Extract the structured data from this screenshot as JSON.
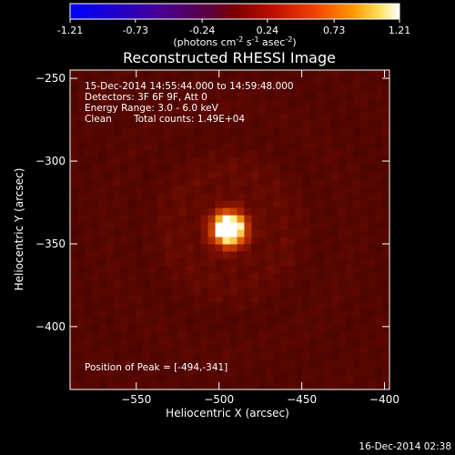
{
  "chart_data": {
    "type": "heatmap",
    "colorbar": {
      "tick_labels": [
        "-1.21",
        "-0.73",
        "-0.24",
        "0.24",
        "0.73",
        "1.21"
      ],
      "range": [
        -1.21,
        1.21
      ],
      "label_prefix": "(photons cm",
      "label_exp1": "-2",
      "label_mid": " s",
      "label_exp2": "-1",
      "label_mid2": " asec",
      "label_exp3": "-2",
      "label_suffix": ")"
    },
    "title": "Reconstructed RHESSI Image",
    "annotations": {
      "time_range": "15-Dec-2014 14:55:44.000 to 14:59:48.000",
      "detectors": "Detectors: 3F 6F 9F, Att 0",
      "energy": "Energy Range: 3.0 - 6.0 keV",
      "method": "Clean",
      "counts": "Total counts: 1.49E+04",
      "peak": "Position of Peak = [-494,-341]"
    },
    "xlabel": "Heliocentric X (arcsec)",
    "ylabel": "Heliocentric Y (arcsec)",
    "xlim": [
      -590,
      -397
    ],
    "ylim": [
      -438,
      -245
    ],
    "xticks": [
      -550,
      -500,
      -450,
      -400
    ],
    "yticks": [
      -250,
      -300,
      -350,
      -400
    ],
    "xtick_labels": [
      "−550",
      "−500",
      "−450",
      "−400"
    ],
    "ytick_labels": [
      "−250",
      "−300",
      "−350",
      "−400"
    ],
    "source": {
      "x": -494,
      "y": -341
    },
    "timestamp": "16-Dec-2014 02:38",
    "colormap": "red-temperature"
  }
}
